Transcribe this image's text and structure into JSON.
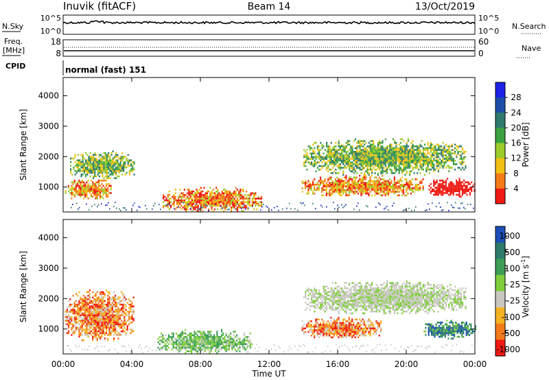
{
  "header": {
    "station": "Inuvik (fitACF)",
    "beam": "Beam 14",
    "date": "13/Oct/2019"
  },
  "panels": {
    "nsky": {
      "left_label": "N.Sky",
      "left_ticks": [
        "10^5",
        "10^0"
      ],
      "right_label": "N.Search",
      "right_ticks": [
        "10^5",
        "10^0"
      ]
    },
    "freq": {
      "left_label_1": "Freq.",
      "left_label_2": "[MHz]",
      "left_ticks": [
        "18",
        "8"
      ],
      "right_label": "Nave",
      "right_ticks": [
        "60",
        "0"
      ]
    },
    "cpid": {
      "label": "CPID",
      "mode_text": "normal (fast) 151"
    }
  },
  "chart_data": [
    {
      "type": "heatmap",
      "title": "Power",
      "ylabel": "Slant Range [km]",
      "xlabel": "",
      "ylim": [
        180,
        4600
      ],
      "y_ticks": [
        "1000",
        "2000",
        "3000",
        "4000"
      ],
      "x_ticks": [
        "00:00",
        "04:00",
        "08:00",
        "12:00",
        "16:00",
        "20:00",
        "00:00"
      ],
      "colorbar_label": "Power [dB]",
      "colorbar_ticks": [
        "4",
        "8",
        "12",
        "16",
        "20",
        "24",
        "28"
      ],
      "colorbar_colors": [
        "#1d22e6",
        "#1d4fa8",
        "#2f7a6e",
        "#3aa23f",
        "#9ccc2a",
        "#f1c012",
        "#f47a17",
        "#ee1a12"
      ],
      "note_regions": [
        {
          "t_start": 0.1,
          "t_end": 2.8,
          "r_min": 600,
          "r_max": 1300,
          "level": "high"
        },
        {
          "t_start": 0.4,
          "t_end": 4.1,
          "r_min": 1300,
          "r_max": 2200,
          "level": "medium"
        },
        {
          "t_start": 5.8,
          "t_end": 11.6,
          "r_min": 200,
          "r_max": 1000,
          "level": "high"
        },
        {
          "t_start": 13.9,
          "t_end": 21.0,
          "r_min": 700,
          "r_max": 1400,
          "level": "high"
        },
        {
          "t_start": 14.0,
          "t_end": 23.5,
          "r_min": 1400,
          "r_max": 2600,
          "level": "medium"
        },
        {
          "t_start": 21.3,
          "t_end": 24.0,
          "r_min": 700,
          "r_max": 1300,
          "level": "very-high"
        }
      ]
    },
    {
      "type": "heatmap",
      "title": "Velocity",
      "ylabel": "Slant Range [km]",
      "xlabel": "Time UT",
      "ylim": [
        180,
        4600
      ],
      "y_ticks": [
        "1000",
        "2000",
        "3000",
        "4000"
      ],
      "x_ticks": [
        "00:00",
        "04:00",
        "08:00",
        "12:00",
        "16:00",
        "20:00",
        "00:00"
      ],
      "colorbar_label": "Velocity [m s",
      "colorbar_label_sup": "-1",
      "colorbar_ticks": [
        "1000",
        "500",
        "100",
        "25",
        "-25",
        "-100",
        "-500",
        "-1000"
      ],
      "colorbar_colors": [
        "#1d4fb8",
        "#2b7a6a",
        "#3a9e55",
        "#7fce3a",
        "#c8c8c0",
        "#f5b223",
        "#f27a1b",
        "#ee1a12"
      ],
      "note_regions": [
        {
          "t_start": 0.1,
          "t_end": 4.1,
          "r_min": 600,
          "r_max": 2300,
          "level": "negative"
        },
        {
          "t_start": 5.5,
          "t_end": 11.0,
          "r_min": 200,
          "r_max": 1000,
          "level": "low-positive"
        },
        {
          "t_start": 13.9,
          "t_end": 18.5,
          "r_min": 700,
          "r_max": 1400,
          "level": "negative"
        },
        {
          "t_start": 14.0,
          "t_end": 23.5,
          "r_min": 1500,
          "r_max": 2600,
          "level": "near-zero"
        },
        {
          "t_start": 21.0,
          "t_end": 24.0,
          "r_min": 700,
          "r_max": 1300,
          "level": "positive"
        }
      ]
    }
  ]
}
